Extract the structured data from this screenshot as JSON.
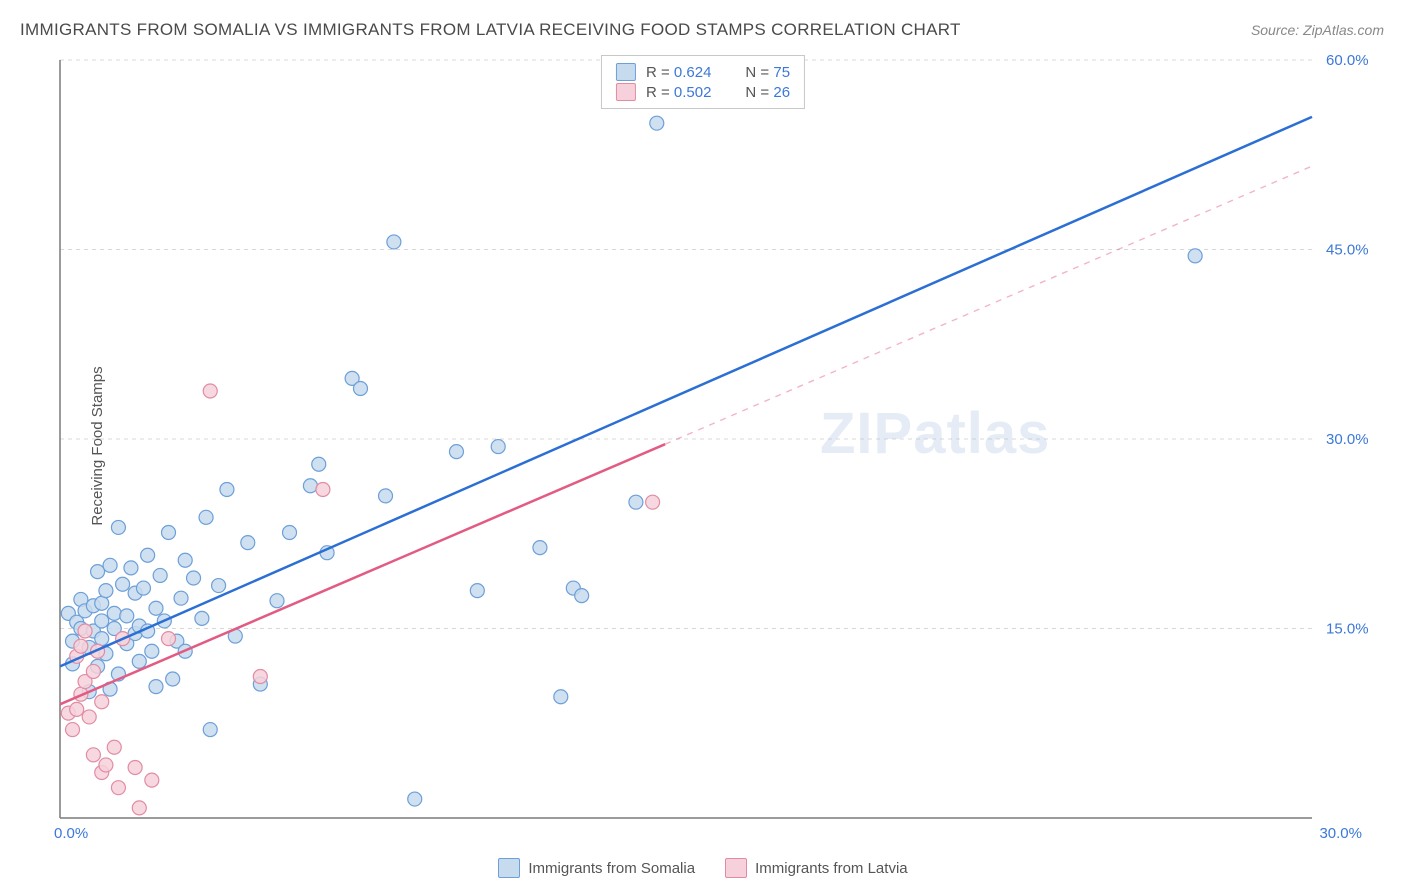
{
  "title": "IMMIGRANTS FROM SOMALIA VS IMMIGRANTS FROM LATVIA RECEIVING FOOD STAMPS CORRELATION CHART",
  "source": "Source: ZipAtlas.com",
  "watermark": "ZIPatlas",
  "y_axis_label": "Receiving Food Stamps",
  "chart": {
    "type": "scatter",
    "xlim": [
      0,
      30
    ],
    "ylim": [
      0,
      60
    ],
    "xtick_labels": [
      "0.0%",
      "30.0%"
    ],
    "ytick_labels": [
      "15.0%",
      "30.0%",
      "45.0%",
      "60.0%"
    ],
    "ytick_values": [
      15,
      30,
      45,
      60
    ],
    "grid_color": "#d8d8d8",
    "axis_color": "#7a7a7a",
    "background_color": "#ffffff",
    "tick_label_color": "#3b78d8",
    "tick_fontsize": 15,
    "marker_radius": 7,
    "marker_stroke_width": 1.2,
    "trend_line_width": 2.5
  },
  "series": [
    {
      "name": "Immigrants from Somalia",
      "fill": "#c7dbef",
      "stroke": "#6d9fd8",
      "line_color": "#2b6fd4",
      "line_dash": "none",
      "line_extent": [
        0,
        30
      ],
      "trend": {
        "slope": 1.45,
        "intercept": 12.0
      },
      "R": "0.624",
      "N": "75",
      "points": [
        [
          0.2,
          16.2
        ],
        [
          0.3,
          14.0
        ],
        [
          0.3,
          12.2
        ],
        [
          0.4,
          15.5
        ],
        [
          0.5,
          15.0
        ],
        [
          0.5,
          17.3
        ],
        [
          0.6,
          16.4
        ],
        [
          0.7,
          10.0
        ],
        [
          0.7,
          13.5
        ],
        [
          0.8,
          16.8
        ],
        [
          0.8,
          14.8
        ],
        [
          0.9,
          12.0
        ],
        [
          0.9,
          19.5
        ],
        [
          1.0,
          17.0
        ],
        [
          1.0,
          14.2
        ],
        [
          1.0,
          15.6
        ],
        [
          1.1,
          13.0
        ],
        [
          1.1,
          18.0
        ],
        [
          1.2,
          10.2
        ],
        [
          1.2,
          20.0
        ],
        [
          1.3,
          15.0
        ],
        [
          1.3,
          16.2
        ],
        [
          1.4,
          11.4
        ],
        [
          1.4,
          23.0
        ],
        [
          1.5,
          18.5
        ],
        [
          1.6,
          13.8
        ],
        [
          1.6,
          16.0
        ],
        [
          1.7,
          19.8
        ],
        [
          1.8,
          14.6
        ],
        [
          1.8,
          17.8
        ],
        [
          1.9,
          12.4
        ],
        [
          1.9,
          15.2
        ],
        [
          2.0,
          18.2
        ],
        [
          2.1,
          14.8
        ],
        [
          2.1,
          20.8
        ],
        [
          2.2,
          13.2
        ],
        [
          2.3,
          16.6
        ],
        [
          2.3,
          10.4
        ],
        [
          2.4,
          19.2
        ],
        [
          2.5,
          15.6
        ],
        [
          2.6,
          22.6
        ],
        [
          2.7,
          11.0
        ],
        [
          2.8,
          14.0
        ],
        [
          2.9,
          17.4
        ],
        [
          3.0,
          20.4
        ],
        [
          3.0,
          13.2
        ],
        [
          3.2,
          19.0
        ],
        [
          3.4,
          15.8
        ],
        [
          3.5,
          23.8
        ],
        [
          3.6,
          7.0
        ],
        [
          3.8,
          18.4
        ],
        [
          4.0,
          26.0
        ],
        [
          4.2,
          14.4
        ],
        [
          4.5,
          21.8
        ],
        [
          4.8,
          10.6
        ],
        [
          5.2,
          17.2
        ],
        [
          5.5,
          22.6
        ],
        [
          6.0,
          26.3
        ],
        [
          6.2,
          28.0
        ],
        [
          6.4,
          21.0
        ],
        [
          7.0,
          34.8
        ],
        [
          7.2,
          34.0
        ],
        [
          7.8,
          25.5
        ],
        [
          8.0,
          45.6
        ],
        [
          8.5,
          1.5
        ],
        [
          9.5,
          29.0
        ],
        [
          10.0,
          18.0
        ],
        [
          10.5,
          29.4
        ],
        [
          11.5,
          21.4
        ],
        [
          12.0,
          9.6
        ],
        [
          12.3,
          18.2
        ],
        [
          12.5,
          17.6
        ],
        [
          13.8,
          25.0
        ],
        [
          14.3,
          55.0
        ],
        [
          27.2,
          44.5
        ]
      ]
    },
    {
      "name": "Immigrants from Latvia",
      "fill": "#f6d1db",
      "stroke": "#e28ca3",
      "line_color": "#e25b83",
      "line_dash": "none",
      "line_extent": [
        0,
        14.5
      ],
      "dashed_extension": {
        "from": 14.5,
        "to": 30,
        "dash": "6 6",
        "opacity": 0.45
      },
      "trend": {
        "slope": 1.42,
        "intercept": 9.0
      },
      "R": "0.502",
      "N": "26",
      "points": [
        [
          0.2,
          8.3
        ],
        [
          0.3,
          7.0
        ],
        [
          0.4,
          8.6
        ],
        [
          0.4,
          12.8
        ],
        [
          0.5,
          9.8
        ],
        [
          0.5,
          13.6
        ],
        [
          0.6,
          10.8
        ],
        [
          0.6,
          14.8
        ],
        [
          0.7,
          8.0
        ],
        [
          0.8,
          11.6
        ],
        [
          0.8,
          5.0
        ],
        [
          0.9,
          13.2
        ],
        [
          1.0,
          9.2
        ],
        [
          1.0,
          3.6
        ],
        [
          1.1,
          4.2
        ],
        [
          1.3,
          5.6
        ],
        [
          1.4,
          2.4
        ],
        [
          1.5,
          14.2
        ],
        [
          1.8,
          4.0
        ],
        [
          1.9,
          0.8
        ],
        [
          2.2,
          3.0
        ],
        [
          2.6,
          14.2
        ],
        [
          3.6,
          33.8
        ],
        [
          4.8,
          11.2
        ],
        [
          6.3,
          26.0
        ],
        [
          14.2,
          25.0
        ]
      ]
    }
  ],
  "legend": {
    "bottom": [
      {
        "label": "Immigrants from Somalia",
        "fill": "#c7dbef",
        "stroke": "#6d9fd8"
      },
      {
        "label": "Immigrants from Latvia",
        "fill": "#f6d1db",
        "stroke": "#e28ca3"
      }
    ]
  }
}
